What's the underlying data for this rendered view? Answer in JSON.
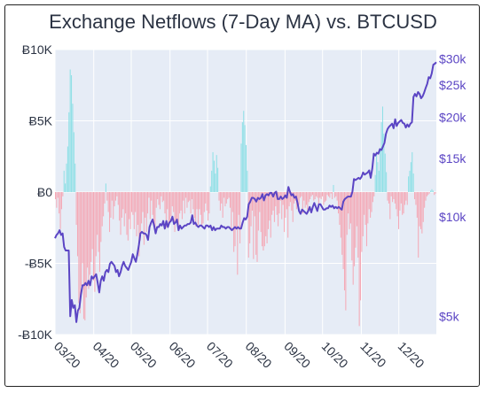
{
  "chart_data": {
    "type": "bar+line",
    "title": "Exchange Netflows (7-Day MA) vs. BTCUSD",
    "x_tick_labels": [
      "03/20",
      "04/20",
      "05/20",
      "06/20",
      "07/20",
      "08/20",
      "09/20",
      "10/20",
      "11/20",
      "12/20"
    ],
    "y_left": {
      "tick_labels": [
        "Ƀ10K",
        "Ƀ5K",
        "Ƀ0",
        "-Ƀ5K",
        "-Ƀ10K"
      ],
      "ticks": [
        10000,
        5000,
        0,
        -5000,
        -10000
      ],
      "ylim": [
        -10000,
        10000
      ]
    },
    "y_right": {
      "scale": "log",
      "tick_labels": [
        "$30k",
        "$25k",
        "$20k",
        "$15k",
        "$10k",
        "$5k"
      ],
      "ticks": [
        30000,
        25000,
        20000,
        15000,
        10000,
        5000
      ],
      "ylim": [
        4400,
        32000
      ]
    },
    "netflow_series": {
      "name": "Exchange Netflows (7-Day MA)",
      "unit": "BTC",
      "positive_color": "#8fe0e6",
      "negative_color": "#f4a9b6",
      "x_start": "2020-03-01",
      "x_end": "2020-12-31",
      "values": [
        -500,
        -1100,
        -400,
        -1500,
        -2600,
        -1200,
        -300,
        1500,
        600,
        2000,
        3200,
        5600,
        8600,
        8200,
        6200,
        4200,
        2000,
        -2300,
        -4500,
        -7800,
        -8500,
        -6600,
        -5000,
        -8900,
        -9000,
        -7400,
        -5300,
        -6800,
        -5800,
        -4900,
        -4000,
        -6200,
        -7000,
        -4500,
        -3000,
        -4200,
        -5600,
        -3500,
        -2400,
        -1700,
        -800,
        600,
        -600,
        -1400,
        -2800,
        -1800,
        -600,
        -1900,
        -1000,
        -600,
        -300,
        -900,
        -2000,
        -3000,
        -1800,
        -1200,
        -2400,
        -1500,
        -3000,
        -3400,
        -1900,
        -2600,
        -1400,
        -1600,
        -2600,
        -1400,
        -3100,
        -2300,
        -4500,
        -3400,
        -2200,
        -1400,
        -3700,
        -1800,
        -2800,
        -1500,
        -400,
        -1900,
        -600,
        -1600,
        -2200,
        -2600,
        -1100,
        -500,
        -900,
        -1200,
        -300,
        -700,
        -600,
        -1500,
        -2500,
        -1200,
        -2300,
        -2100,
        -1700,
        -1000,
        -1400,
        -2800,
        -2100,
        -1900,
        -2700,
        -1500,
        -1300,
        -1900,
        -600,
        -1500,
        -400,
        -1100,
        -700,
        -600,
        -1500,
        -500,
        -1200,
        -1800,
        -2400,
        -1200,
        -2300,
        -1200,
        -1600,
        -2300,
        -2200,
        -1400,
        -800,
        -1300,
        -2000,
        -1500,
        400,
        1500,
        2800,
        2200,
        1300,
        2600,
        1700,
        -600,
        -1300,
        -800,
        -1800,
        -400,
        -1000,
        -800,
        -500,
        -400,
        -1100,
        -2600,
        -1400,
        -4200,
        -3800,
        -2500,
        -5800,
        -1600,
        -3600,
        3400,
        4900,
        5700,
        4700,
        3300,
        1500,
        -4600,
        -3600,
        -2400,
        -1300,
        -4700,
        -1700,
        -4400,
        -4900,
        -2700,
        -1400,
        -2800,
        -3800,
        -4100,
        -3800,
        -3100,
        -3600,
        -2600,
        -2000,
        -3200,
        -1600,
        -1300,
        -2100,
        -1000,
        -1600,
        -2400,
        -1500,
        -600,
        -1900,
        -900,
        -2800,
        -1800,
        -1200,
        -3200,
        -1000,
        -700,
        -1300,
        -2100,
        -800,
        -600,
        -1200,
        -800,
        -900,
        -400,
        -300,
        -1500,
        -600,
        -1100,
        -900,
        -1400,
        -700,
        -500,
        -300,
        -200,
        -600,
        -500,
        -300,
        -400,
        -1100,
        -400,
        -500,
        -300,
        -900,
        -700,
        -600,
        -200,
        -300,
        -400,
        -100,
        -500,
        500,
        -400,
        -300,
        -600,
        -1500,
        -2300,
        -3200,
        -4400,
        -5400,
        -6900,
        -8300,
        -3000,
        -1500,
        -2600,
        -2200,
        -4800,
        -6500,
        -5200,
        -3900,
        -2400,
        -4600,
        -9400,
        -7600,
        -4200,
        -3100,
        -1600,
        -2300,
        -3800,
        -2200,
        -1200,
        -1800,
        -1400,
        -700,
        -300,
        1200,
        2600,
        2100,
        1500,
        3100,
        4900,
        6000,
        4100,
        2700,
        1400,
        -600,
        -800,
        -1900,
        -300,
        -700,
        -500,
        -800,
        -1200,
        -1700,
        -2600,
        -1300,
        -800,
        -1600,
        -1500,
        -900,
        -600,
        -900,
        1100,
        1500,
        2100,
        2800,
        1300,
        -500,
        -900,
        -1800,
        -4600,
        -2400,
        -2600,
        -2900,
        -2100,
        -1100,
        -600,
        -300,
        -200,
        -100,
        100,
        200,
        100,
        -200,
        -100
      ]
    },
    "price_series": {
      "name": "BTCUSD",
      "color": "#5b45c4",
      "x_start": "2020-03-01",
      "x_end": "2020-12-31",
      "values": [
        8600,
        8800,
        8900,
        9100,
        8800,
        8900,
        8100,
        7900,
        7900,
        7900,
        5000,
        5600,
        5300,
        5400,
        4800,
        5200,
        5300,
        5800,
        6200,
        6200,
        6300,
        6200,
        6400,
        6200,
        6600,
        6500,
        6600,
        6700,
        6300,
        5900,
        6400,
        6600,
        6400,
        6800,
        6900,
        6800,
        7200,
        7300,
        7200,
        7100,
        6800,
        6900,
        6600,
        6800,
        7100,
        7300,
        7100,
        7000,
        6900,
        7100,
        7300,
        7700,
        7500,
        7300,
        7700,
        8200,
        8900,
        9000,
        8900,
        8900,
        8800,
        8500,
        9300,
        9600,
        9800,
        9400,
        8900,
        9300,
        9300,
        9500,
        9400,
        9700,
        9200,
        9700,
        9300,
        9600,
        9700,
        10000,
        9500,
        9600,
        9800,
        9100,
        9400,
        9200,
        9300,
        9400,
        9400,
        9500,
        9500,
        9600,
        10100,
        9500,
        9600,
        9400,
        9300,
        9400,
        9400,
        9300,
        9200,
        9400,
        9400,
        9300,
        9400,
        9100,
        9300,
        9100,
        9200,
        9200,
        9200,
        9400,
        9300,
        9300,
        9200,
        9300,
        9300,
        9200,
        9100,
        9200,
        9300,
        9200,
        9300,
        9200,
        9200,
        9600,
        9900,
        9800,
        10000,
        10900,
        11100,
        11400,
        11400,
        11300,
        11100,
        11400,
        11300,
        11400,
        11700,
        11200,
        11600,
        11700,
        11600,
        11800,
        11800,
        11500,
        11800,
        11900,
        11300,
        11300,
        11500,
        11300,
        11400,
        11600,
        11400,
        12300,
        11900,
        11600,
        11700,
        11400,
        11500,
        11000,
        10400,
        10200,
        10500,
        10400,
        10300,
        10200,
        10400,
        10700,
        10300,
        10700,
        11000,
        10700,
        10400,
        10900,
        10900,
        10700,
        10500,
        10500,
        10600,
        10600,
        10800,
        10700,
        10800,
        10600,
        10700,
        10600,
        10700,
        10600,
        10500,
        11100,
        11300,
        11400,
        11500,
        11500,
        11500,
        11900,
        13000,
        12900,
        13000,
        13100,
        13000,
        13200,
        13600,
        13400,
        13500,
        13600,
        13800,
        13100,
        14000,
        15500,
        15300,
        15600,
        15500,
        16000,
        15900,
        16300,
        16700,
        17800,
        18400,
        18700,
        18900,
        19100,
        18500,
        19700,
        18800,
        19200,
        19400,
        19600,
        19200,
        19100,
        18600,
        19000,
        18700,
        19100,
        19300,
        23000,
        23500,
        23100,
        23800,
        23500,
        22800,
        23100,
        23700,
        24500,
        25200,
        26400,
        26200,
        27100,
        28800,
        29000,
        29300
      ]
    }
  }
}
